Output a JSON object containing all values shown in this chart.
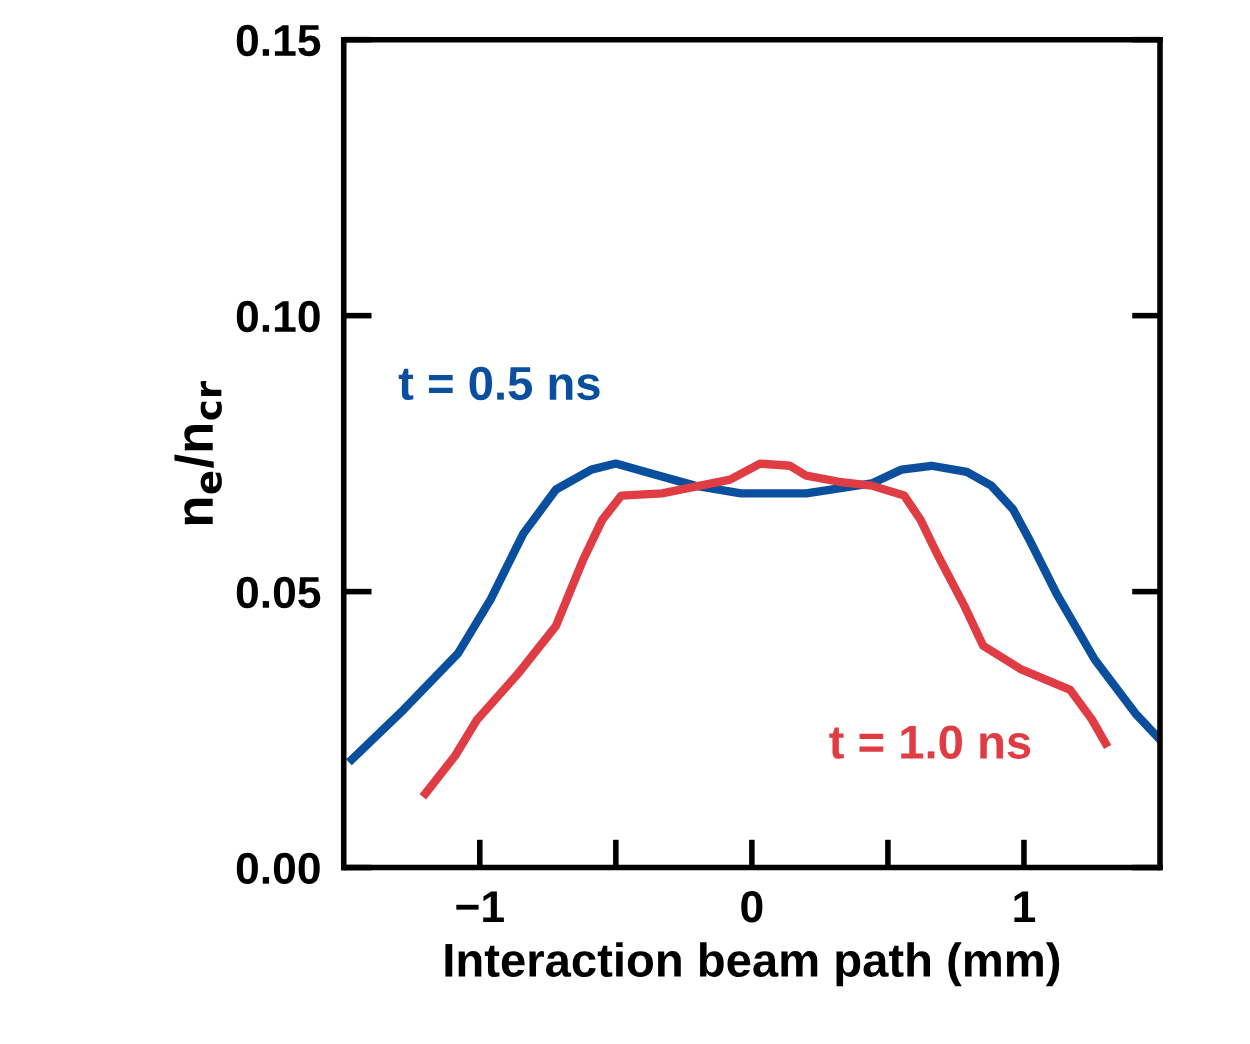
{
  "chart_data": {
    "type": "line",
    "xlabel": "Interaction beam path (mm)",
    "ylabel": "n$_{e}$/n$_{cr}$",
    "xlim": [
      -1.5,
      1.5
    ],
    "ylim": [
      0,
      0.15
    ],
    "xticks": [
      {
        "value": -1,
        "label": "−1"
      },
      {
        "value": -0.5,
        "label": null
      },
      0,
      {
        "value": 0.5,
        "label": null
      },
      1
    ],
    "yticks": [
      {
        "value": 0,
        "label": "0.00"
      },
      0.05,
      {
        "value": 0.1,
        "label": "0.10"
      },
      0.15
    ],
    "grid": false,
    "legend": false,
    "marker": "none",
    "line_style": "solid",
    "series": [
      {
        "name": "t = 0.5 ns",
        "color": "#0a4f9e",
        "x": [
          -1.47,
          -1.28,
          -1.08,
          -0.96,
          -0.84,
          -0.72,
          -0.59,
          -0.5,
          -0.37,
          -0.21,
          -0.04,
          0.2,
          0.44,
          0.55,
          0.66,
          0.79,
          0.88,
          0.96,
          1.02,
          1.12,
          1.26,
          1.41,
          1.5
        ],
        "values": [
          0.0196,
          0.0286,
          0.0388,
          0.0486,
          0.0605,
          0.0685,
          0.0721,
          0.0732,
          0.0714,
          0.0692,
          0.0678,
          0.0678,
          0.0696,
          0.0721,
          0.0728,
          0.0717,
          0.0692,
          0.0649,
          0.0594,
          0.0496,
          0.0377,
          0.0279,
          0.0232
        ]
      },
      {
        "name": "t = 1.0 ns",
        "color": "#e03c44",
        "x": [
          -1.2,
          -1.09,
          -1.01,
          -0.86,
          -0.72,
          -0.62,
          -0.55,
          -0.48,
          -0.33,
          -0.19,
          -0.08,
          0.03,
          0.14,
          0.2,
          0.32,
          0.44,
          0.56,
          0.62,
          0.68,
          0.78,
          0.85,
          0.99,
          1.17,
          1.25,
          1.3
        ],
        "values": [
          0.0134,
          0.0203,
          0.0268,
          0.0351,
          0.0438,
          0.0558,
          0.063,
          0.0674,
          0.0678,
          0.0692,
          0.0703,
          0.0732,
          0.0728,
          0.071,
          0.0699,
          0.0692,
          0.0674,
          0.063,
          0.0569,
          0.0475,
          0.0402,
          0.0359,
          0.0322,
          0.0268,
          0.0225
        ]
      }
    ]
  }
}
